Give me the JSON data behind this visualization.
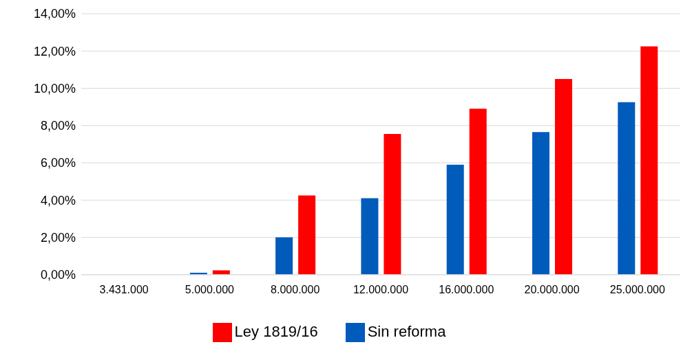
{
  "chart_data": {
    "type": "bar",
    "categories": [
      "3.431.000",
      "5.000.000",
      "8.000.000",
      "12.000.000",
      "16.000.000",
      "20.000.000",
      "25.000.000"
    ],
    "series": [
      {
        "name": "Sin reforma",
        "color": "#005bbb",
        "values": [
          0,
          0.1,
          2.0,
          4.1,
          5.9,
          7.65,
          9.25
        ]
      },
      {
        "name": "Ley 1819/16",
        "color": "#ff0000",
        "values": [
          0,
          0.23,
          4.25,
          7.55,
          8.9,
          10.5,
          12.25
        ]
      }
    ],
    "ylim": [
      0,
      14
    ],
    "yticks": [
      {
        "value": 0,
        "label": "0,00%"
      },
      {
        "value": 2,
        "label": "2,00%"
      },
      {
        "value": 4,
        "label": "4,00%"
      },
      {
        "value": 6,
        "label": "6,00%"
      },
      {
        "value": 8,
        "label": "8,00%"
      },
      {
        "value": 10,
        "label": "10,00%"
      },
      {
        "value": 12,
        "label": "12,00%"
      },
      {
        "value": 14,
        "label": "14,00%"
      }
    ],
    "grid": "y",
    "legend": "bottom"
  }
}
